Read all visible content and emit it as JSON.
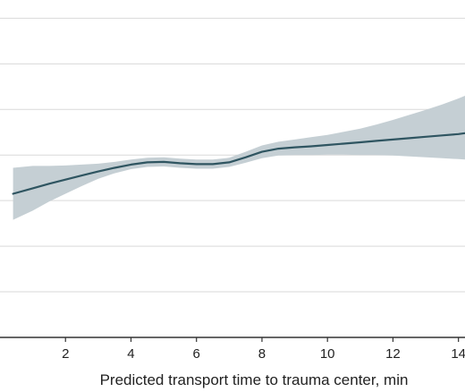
{
  "chart_data": {
    "type": "line",
    "title": "",
    "xlabel": "Predicted transport time to trauma center, min",
    "ylabel": "",
    "xlim": [
      0,
      14.2
    ],
    "x_ticks": [
      2,
      4,
      6,
      8,
      10,
      12,
      14
    ],
    "x_tick_labels": [
      "2",
      "4",
      "6",
      "8",
      "10",
      "12",
      "14"
    ],
    "ylim": [
      0,
      7.4
    ],
    "y_gridlines": [
      1,
      2,
      3,
      4,
      5,
      6,
      7
    ],
    "grid": true,
    "legend": "none",
    "colors": {
      "line": "#2f5561",
      "band": "#c5cfd4",
      "grid": "#d9d9d9",
      "axis": "#333333"
    },
    "series": [
      {
        "x": [
          0.4,
          1,
          1.5,
          2,
          2.5,
          3,
          3.5,
          4,
          4.5,
          5,
          5.5,
          6,
          6.5,
          7,
          7.5,
          8,
          8.5,
          9,
          9.5,
          10,
          10.5,
          11,
          11.5,
          12,
          12.5,
          13,
          13.5,
          14,
          14.2
        ],
        "y": [
          3.15,
          3.27,
          3.37,
          3.46,
          3.55,
          3.64,
          3.72,
          3.79,
          3.84,
          3.85,
          3.82,
          3.8,
          3.8,
          3.84,
          3.95,
          4.07,
          4.14,
          4.17,
          4.19,
          4.22,
          4.25,
          4.28,
          4.31,
          4.34,
          4.37,
          4.4,
          4.43,
          4.46,
          4.48
        ],
        "lower": [
          2.58,
          2.78,
          2.98,
          3.15,
          3.32,
          3.48,
          3.6,
          3.69,
          3.74,
          3.75,
          3.72,
          3.7,
          3.7,
          3.74,
          3.83,
          3.93,
          3.99,
          4.0,
          4.0,
          4.01,
          4.01,
          4.0,
          4.0,
          3.99,
          3.97,
          3.95,
          3.93,
          3.91,
          3.9
        ],
        "upper": [
          3.72,
          3.76,
          3.76,
          3.77,
          3.79,
          3.81,
          3.85,
          3.9,
          3.94,
          3.95,
          3.92,
          3.9,
          3.9,
          3.94,
          4.07,
          4.21,
          4.29,
          4.34,
          4.39,
          4.44,
          4.51,
          4.58,
          4.67,
          4.77,
          4.88,
          4.99,
          5.11,
          5.24,
          5.3
        ]
      }
    ]
  }
}
